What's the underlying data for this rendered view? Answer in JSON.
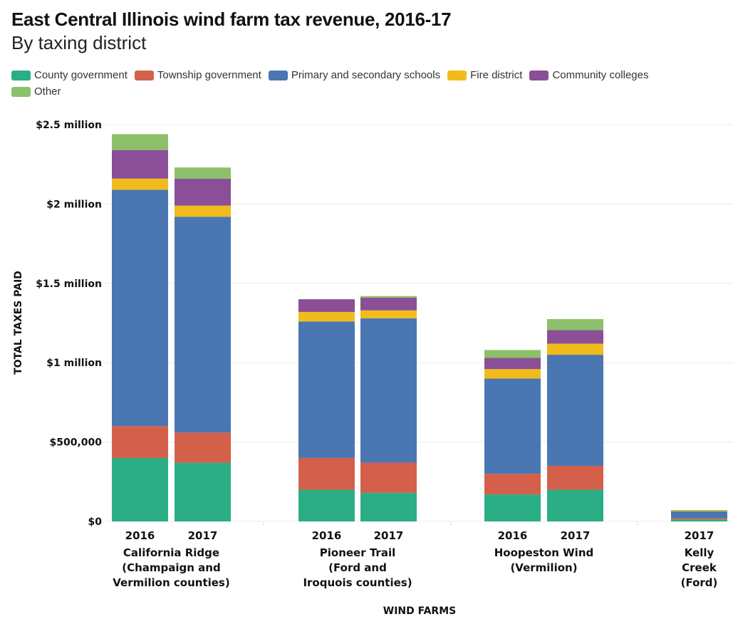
{
  "title": "East Central Illinois wind farm tax revenue, 2016-17",
  "subtitle": "By taxing district",
  "chart_data": {
    "type": "bar",
    "stacked": true,
    "title": "East Central Illinois wind farm tax revenue, 2016-17",
    "subtitle": "By taxing district",
    "xlabel": "WIND FARMS",
    "ylabel": "TOTAL TAXES PAID",
    "ylim": [
      0,
      2500000
    ],
    "yticks": [
      0,
      500000,
      1000000,
      1500000,
      2000000,
      2500000
    ],
    "ytick_labels": [
      "$0",
      "$500,000",
      "$1 million",
      "$1.5 million",
      "$2 million",
      "$2.5 million"
    ],
    "grid": true,
    "legend_position": "top",
    "series": [
      {
        "name": "County government",
        "color": "#2bae86"
      },
      {
        "name": "Township government",
        "color": "#d4604b"
      },
      {
        "name": "Primary and secondary schools",
        "color": "#4a76b2"
      },
      {
        "name": "Fire district",
        "color": "#f2bb1c"
      },
      {
        "name": "Community colleges",
        "color": "#8a4f97"
      },
      {
        "name": "Other",
        "color": "#8cc06a"
      }
    ],
    "groups": [
      {
        "lines": [
          "California Ridge",
          "(Champaign and",
          "Vermilion counties)"
        ],
        "bars": [
          {
            "year": "2016",
            "values": [
              400000,
              200000,
              1490000,
              70000,
              180000,
              100000
            ]
          },
          {
            "year": "2017",
            "values": [
              370000,
              190000,
              1360000,
              70000,
              170000,
              70000
            ]
          }
        ]
      },
      {
        "lines": [
          "Pioneer Trail",
          "(Ford and",
          "Iroquois counties)"
        ],
        "bars": [
          {
            "year": "2016",
            "values": [
              200000,
              200000,
              860000,
              60000,
              80000,
              0
            ]
          },
          {
            "year": "2017",
            "values": [
              180000,
              190000,
              910000,
              50000,
              80000,
              10000
            ]
          }
        ]
      },
      {
        "lines": [
          "Hoopeston Wind",
          "(Vermilion)"
        ],
        "bars": [
          {
            "year": "2016",
            "values": [
              170000,
              130000,
              600000,
              60000,
              70000,
              50000
            ]
          },
          {
            "year": "2017",
            "values": [
              200000,
              150000,
              700000,
              70000,
              85000,
              70000
            ]
          }
        ]
      },
      {
        "lines": [
          "Kelly",
          "Creek",
          "(Ford)"
        ],
        "bars": [
          {
            "year": "2017",
            "values": [
              13000,
              9000,
              41000,
              4000,
              0,
              5000
            ]
          }
        ]
      }
    ]
  }
}
